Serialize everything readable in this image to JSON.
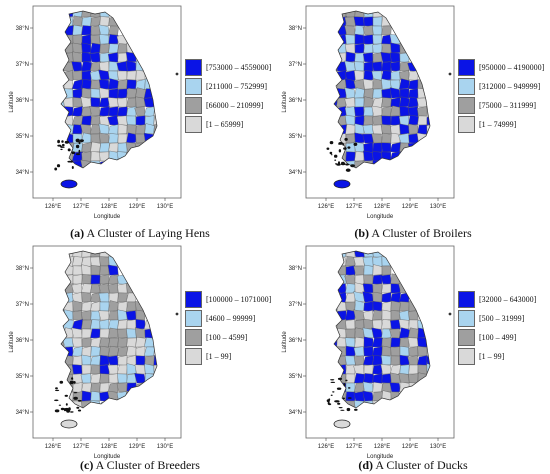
{
  "axes": {
    "x_label": "Longitude",
    "y_label": "Latitude",
    "x_ticks": [
      "126°E",
      "127°E",
      "128°E",
      "129°E",
      "130°E"
    ],
    "y_ticks": [
      "38°N",
      "37°N",
      "36°N",
      "35°N",
      "34°N"
    ]
  },
  "colors": {
    "class1": "#0a14e6",
    "class2": "#a9d4ef",
    "class3": "#9f9f9f",
    "class4": "#d9d9d9",
    "border": "#555555"
  },
  "panels": [
    {
      "letter": "(a)",
      "caption": " A Cluster of Laying Hens",
      "legend": [
        "[753000 – 4559000]",
        "[211000 – 752999]",
        "[66000 – 210999]",
        "[1 – 65999]"
      ]
    },
    {
      "letter": "(b)",
      "caption": " A Cluster of Broilers",
      "legend": [
        "[950000 – 4190000]",
        "[312000 – 949999]",
        "[75000 – 311999]",
        "[1 – 74999]"
      ]
    },
    {
      "letter": "(c)",
      "caption": " A Cluster of Breeders",
      "legend": [
        "[100000 – 1071000]",
        "[4600 – 99999]",
        "[100 – 4599]",
        "[1 – 99]"
      ]
    },
    {
      "letter": "(d)",
      "caption": " A Cluster of Ducks",
      "legend": [
        "[32000 – 643000]",
        "[500 – 31999]",
        "[100 – 499]",
        "[1 – 99]"
      ]
    }
  ]
}
